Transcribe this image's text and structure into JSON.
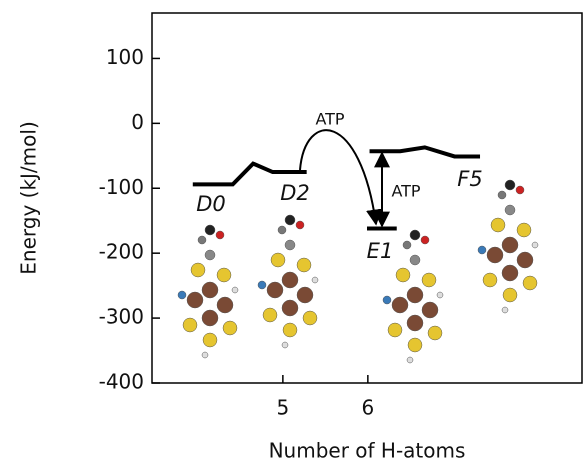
{
  "chart_data": {
    "type": "line",
    "ylabel": "Energy (kJ/mol)",
    "xlabel": "Number of H-atoms",
    "xlim": [
      3.46,
      8.52
    ],
    "xticks": [
      5,
      6
    ],
    "ylim": [
      -400,
      170
    ],
    "yticks": [
      -400,
      -300,
      -200,
      -100,
      0,
      100
    ],
    "series": [
      {
        "color": "#000000",
        "x": [
          3.94,
          4.41,
          4.65,
          4.88,
          5.28
        ],
        "values": [
          -94,
          -94,
          -62,
          -75,
          -75
        ]
      },
      {
        "color": "#000000",
        "x": [
          5.99,
          6.34
        ],
        "values": [
          -162,
          -162
        ]
      },
      {
        "color": "#000000",
        "x": [
          6.02,
          6.38,
          6.67,
          7.02,
          7.32
        ],
        "values": [
          -43,
          -43,
          -37,
          -51,
          -51
        ]
      }
    ],
    "annotations": [
      "D0",
      "D2",
      "E1",
      "F5",
      "ATP",
      "ATP"
    ]
  }
}
